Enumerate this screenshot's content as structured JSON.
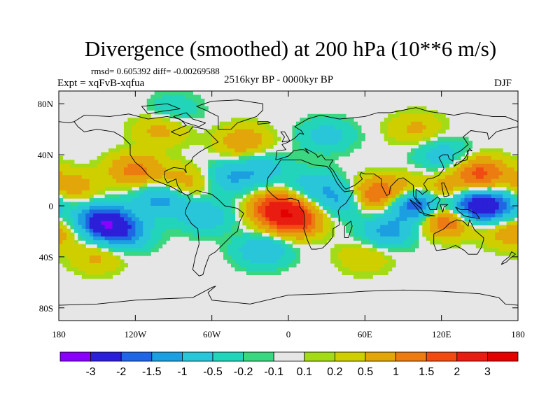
{
  "chart_data": {
    "type": "heatmap",
    "title": "Divergence (smoothed) at 200 hPa (10**6 m/s)",
    "stats_text": "rmsd= 0.605392 diff= -0.00269588",
    "period": "2516kyr BP - 0000kyr BP",
    "left_label": "Expt = xqFvB-xqfua",
    "season": "DJF",
    "x_ticks": [
      {
        "lon": -180,
        "label": "180"
      },
      {
        "lon": -120,
        "label": "120W"
      },
      {
        "lon": -60,
        "label": "60W"
      },
      {
        "lon": 0,
        "label": "0"
      },
      {
        "lon": 60,
        "label": "60E"
      },
      {
        "lon": 120,
        "label": "120E"
      },
      {
        "lon": 180,
        "label": "180"
      }
    ],
    "y_ticks": [
      {
        "lat": 80,
        "label": "80N"
      },
      {
        "lat": 40,
        "label": "40N"
      },
      {
        "lat": 0,
        "label": "0"
      },
      {
        "lat": -40,
        "label": "40S"
      },
      {
        "lat": -80,
        "label": "80S"
      }
    ],
    "xlim": [
      -180,
      180
    ],
    "ylim": [
      -90,
      90
    ],
    "colorbar": {
      "levels": [
        "-3",
        "-2",
        "-1.5",
        "-1",
        "-0.5",
        "-0.2",
        "-0.1",
        "0.1",
        "0.2",
        "0.5",
        "1",
        "1.5",
        "2",
        "3"
      ],
      "colors": [
        "#8a00ff",
        "#2b1fd8",
        "#1f66e5",
        "#1c9fe0",
        "#29c6da",
        "#22d4b9",
        "#3ad680",
        "#e6e6e6",
        "#a3dc16",
        "#cfcf00",
        "#e2a60a",
        "#ec7c12",
        "#ef4b12",
        "#e81c10",
        "#e50000"
      ]
    },
    "anomaly_centers": [
      {
        "lon": -145,
        "lat": -12,
        "value": -2.6
      },
      {
        "lon": -130,
        "lat": -22,
        "value": -1.4
      },
      {
        "lon": -120,
        "lat": 28,
        "value": 1.2
      },
      {
        "lon": -170,
        "lat": 15,
        "value": 0.8
      },
      {
        "lon": -100,
        "lat": 5,
        "value": -1.2
      },
      {
        "lon": -65,
        "lat": -8,
        "value": -0.9
      },
      {
        "lon": -80,
        "lat": 18,
        "value": 0.8
      },
      {
        "lon": -45,
        "lat": 22,
        "value": -1.0
      },
      {
        "lon": -35,
        "lat": 50,
        "value": 0.9
      },
      {
        "lon": -20,
        "lat": 30,
        "value": -0.7
      },
      {
        "lon": -8,
        "lat": -2,
        "value": 2.2
      },
      {
        "lon": 5,
        "lat": -12,
        "value": 1.8
      },
      {
        "lon": -20,
        "lat": -35,
        "value": -1.0
      },
      {
        "lon": 20,
        "lat": 15,
        "value": -0.8
      },
      {
        "lon": 45,
        "lat": 5,
        "value": -1.3
      },
      {
        "lon": 65,
        "lat": 8,
        "value": 1.7
      },
      {
        "lon": 78,
        "lat": -20,
        "value": -1.2
      },
      {
        "lon": 90,
        "lat": 12,
        "value": 0.8
      },
      {
        "lon": 102,
        "lat": 2,
        "value": -2.8
      },
      {
        "lon": 118,
        "lat": 8,
        "value": 1.4
      },
      {
        "lon": 125,
        "lat": -10,
        "value": 2.1
      },
      {
        "lon": 140,
        "lat": -1,
        "value": -2.2
      },
      {
        "lon": 160,
        "lat": 0,
        "value": -1.8
      },
      {
        "lon": 150,
        "lat": 25,
        "value": 1.7
      },
      {
        "lon": 120,
        "lat": 40,
        "value": -0.8
      },
      {
        "lon": 175,
        "lat": -20,
        "value": 0.9
      },
      {
        "lon": 30,
        "lat": 55,
        "value": -0.7
      },
      {
        "lon": -100,
        "lat": 60,
        "value": 0.7
      },
      {
        "lon": -90,
        "lat": 75,
        "value": -0.5
      },
      {
        "lon": 100,
        "lat": 60,
        "value": 0.6
      },
      {
        "lon": -150,
        "lat": -40,
        "value": 0.6
      },
      {
        "lon": 60,
        "lat": -40,
        "value": 0.5
      }
    ]
  }
}
